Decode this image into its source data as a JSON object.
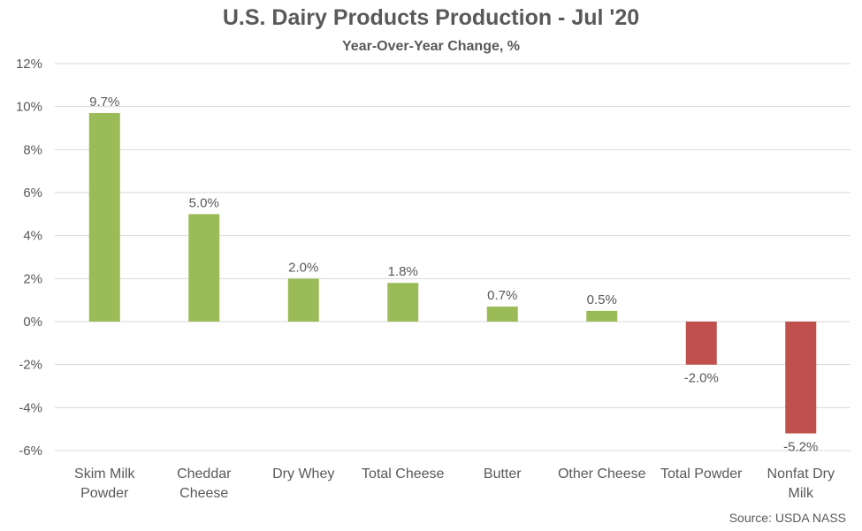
{
  "chart_data": {
    "type": "bar",
    "title": "U.S. Dairy Products Production - Jul '20",
    "subtitle": "Year-Over-Year Change, %",
    "source": "Source: USDA NASS",
    "categories": [
      [
        "Skim Milk",
        "Powder"
      ],
      [
        "Cheddar",
        "Cheese"
      ],
      [
        "Dry Whey"
      ],
      [
        "Total  Cheese"
      ],
      [
        "Butter"
      ],
      [
        "Other Cheese"
      ],
      [
        "Total Powder"
      ],
      [
        "Nonfat Dry",
        "Milk"
      ]
    ],
    "values": [
      9.7,
      5.0,
      2.0,
      1.8,
      0.7,
      0.5,
      -2.0,
      -5.2
    ],
    "data_labels": [
      "9.7%",
      "5.0%",
      "2.0%",
      "1.8%",
      "0.7%",
      "0.5%",
      "-2.0%",
      "-5.2%"
    ],
    "ylim": [
      -6,
      12
    ],
    "y_ticks": [
      12,
      10,
      8,
      6,
      4,
      2,
      0,
      -2,
      -4,
      -6
    ],
    "y_tick_labels": [
      "12%",
      "10%",
      "8%",
      "6%",
      "4%",
      "2%",
      "0%",
      "-2%",
      "-4%",
      "-6%"
    ],
    "grid": true,
    "legend": "none",
    "colors": {
      "positive": "#9bbb59",
      "negative": "#c0504d",
      "grid": "#d9d9d9",
      "text": "#595959"
    }
  }
}
